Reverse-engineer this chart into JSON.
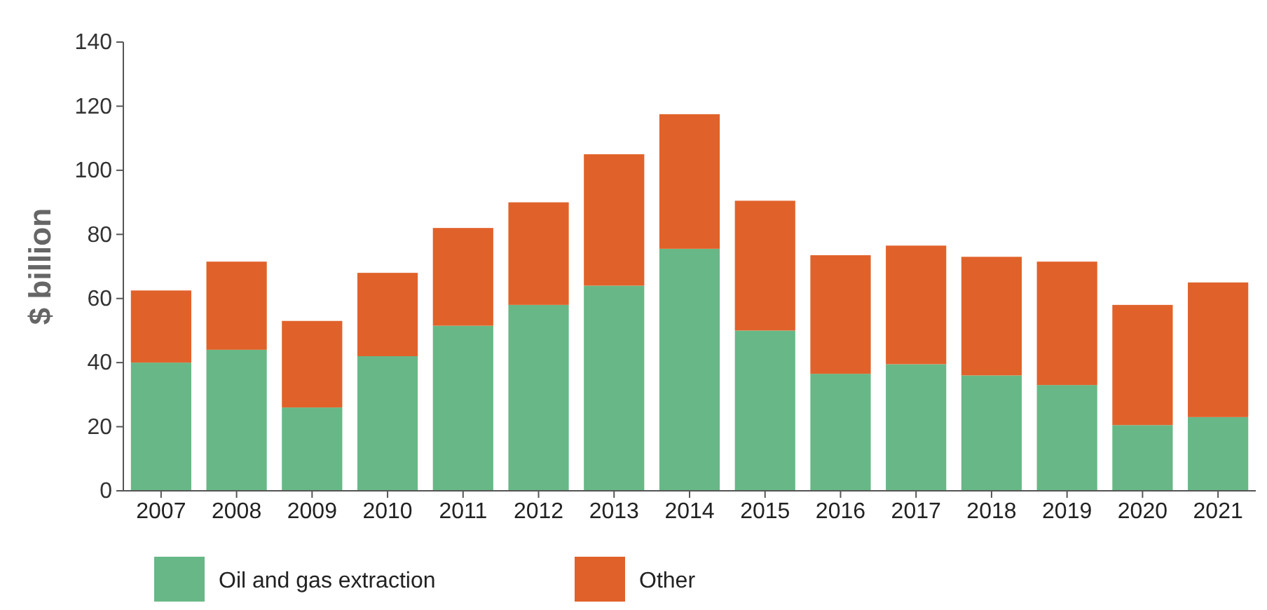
{
  "chart_data": {
    "type": "bar",
    "stacked": true,
    "ylabel": "$ billion",
    "categories": [
      "2007",
      "2008",
      "2009",
      "2010",
      "2011",
      "2012",
      "2013",
      "2014",
      "2015",
      "2016",
      "2017",
      "2018",
      "2019",
      "2020",
      "2021"
    ],
    "series": [
      {
        "name": "Oil and gas extraction",
        "color": "#67b886",
        "values": [
          40,
          44,
          26,
          42,
          51.5,
          58,
          64,
          75.5,
          50,
          36.5,
          39.5,
          36,
          33,
          20.5,
          23
        ]
      },
      {
        "name": "Other",
        "color": "#e0622a",
        "values": [
          22.5,
          27.5,
          27,
          26,
          30.5,
          32,
          41,
          42,
          40.5,
          37,
          37,
          37,
          38.5,
          37.5,
          42
        ]
      }
    ],
    "ylim": [
      0,
      140
    ],
    "yticks": [
      0,
      20,
      40,
      60,
      80,
      100,
      120,
      140
    ],
    "grid": false,
    "legend": "bottom"
  }
}
